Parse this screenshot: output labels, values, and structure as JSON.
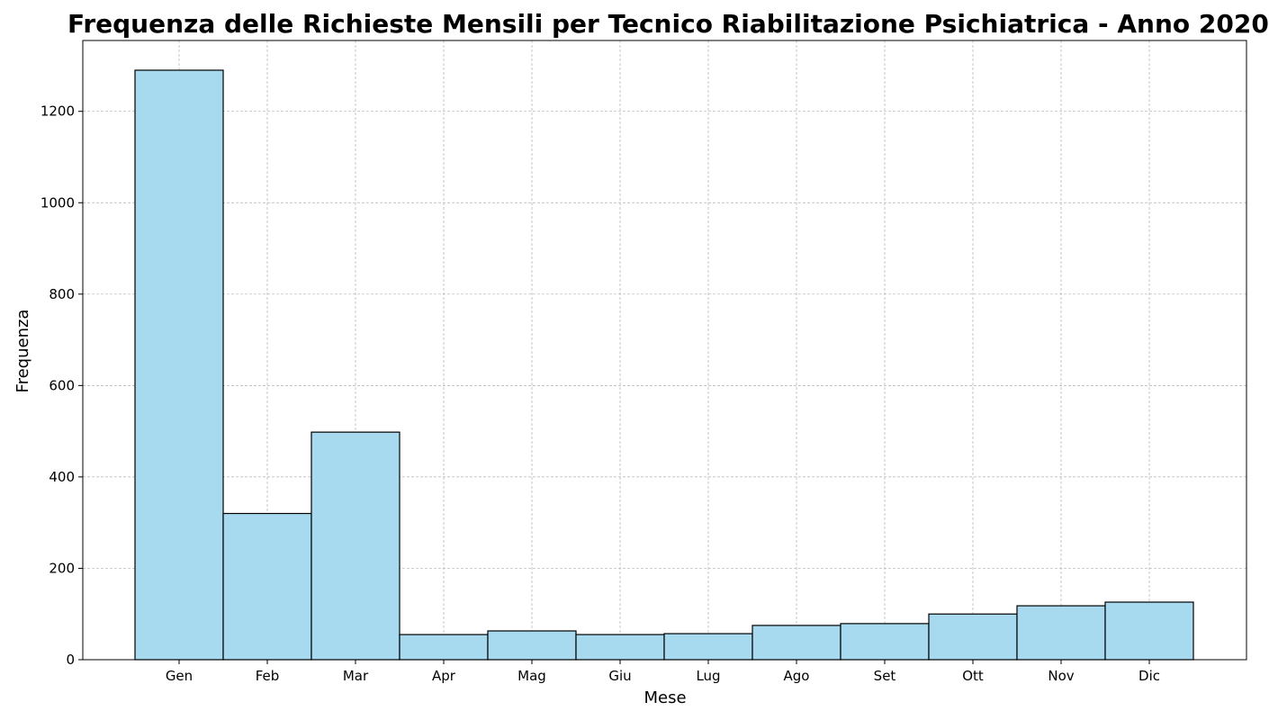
{
  "chart_data": {
    "type": "bar",
    "title": "Frequenza delle Richieste Mensili per Tecnico Riabilitazione Psichiatrica - Anno 2020",
    "xlabel": "Mese",
    "ylabel": "Frequenza",
    "categories": [
      "Gen",
      "Feb",
      "Mar",
      "Apr",
      "Mag",
      "Giu",
      "Lug",
      "Ago",
      "Set",
      "Ott",
      "Nov",
      "Dic"
    ],
    "values": [
      1290,
      320,
      498,
      55,
      63,
      55,
      57,
      75,
      79,
      100,
      118,
      126
    ],
    "ylim": [
      0,
      1355
    ],
    "yticks": [
      0,
      200,
      400,
      600,
      800,
      1000,
      1200
    ],
    "grid": true,
    "bar_color": "#a8daef",
    "edge_color": "#000000"
  }
}
